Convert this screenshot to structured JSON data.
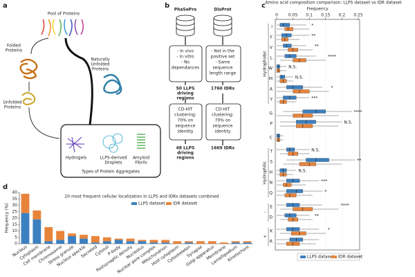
{
  "panel_labels": [
    "a",
    "b",
    "c",
    "d"
  ],
  "diagram_a": {
    "pool": "Pool of Proteins",
    "folded": [
      "Folded",
      "Proteins"
    ],
    "naturally_unfolded": [
      "Naturally",
      "Unfolded",
      "Proteins"
    ],
    "unfolded": [
      "Unfolded",
      "Proteins"
    ],
    "aggregates": [
      [
        "Hydrogels"
      ],
      [
        "LLPS-derived",
        "Droplets"
      ],
      [
        "Amyloid",
        "Fibrils"
      ]
    ],
    "aggregates_title": "Types of Protein Aggregates"
  },
  "flow_b": {
    "columns": [
      {
        "source": "PhaSePro",
        "criteria": [
          "- In vivo",
          "- In vitro",
          "- No",
          "dependances"
        ],
        "count": [
          "50 LLPS",
          "driving",
          "regions"
        ],
        "clustering": [
          "CD-HIT",
          "clustering:",
          "70% on",
          "sequence",
          "identity"
        ],
        "result": [
          "48 LLPS",
          "driving",
          "regions"
        ]
      },
      {
        "source": "DisProt",
        "criteria": [
          "- Not in the",
          "positive set",
          "- Same",
          "sequence",
          "length range"
        ],
        "count": [
          "1760 IDRs"
        ],
        "clustering": [
          "CD-HIT",
          "clustering:",
          "70% on",
          "sequence",
          "identity"
        ],
        "result": [
          "1669 IDRs"
        ]
      }
    ]
  },
  "chart_data": [
    {
      "type": "box",
      "title": "Amino acid composition comparison: LLPS dataset vs IDR dataset",
      "xlabel": "Frequency",
      "xlim": [
        0,
        0.25
      ],
      "xticks": [
        0,
        0.05,
        0.1,
        0.15,
        0.2,
        0.25
      ],
      "series": [
        {
          "name": "LLPS dataset",
          "color": "#3b80c0"
        },
        {
          "name": "IDR dataset",
          "color": "#e8843a"
        }
      ],
      "groups": [
        {
          "name": "Hydrophobic",
          "members": [
            {
              "label": "I",
              "values": [
                [
                  0,
                  0.01,
                  0.02,
                  0.04,
                  0.09
                ],
                [
                  0,
                  0.025,
                  0.035,
                  0.05,
                  0.1
                ]
              ],
              "significance": "*"
            },
            {
              "label": "F",
              "values": [
                [
                  0,
                  0.015,
                  0.03,
                  0.045,
                  0.1
                ],
                [
                  0,
                  0.015,
                  0.025,
                  0.035,
                  0.07
                ]
              ],
              "significance": "**"
            },
            {
              "label": "V",
              "values": [
                [
                  0,
                  0.02,
                  0.03,
                  0.045,
                  0.09
                ],
                [
                  0,
                  0.035,
                  0.05,
                  0.065,
                  0.11
                ]
              ],
              "significance": "**"
            },
            {
              "label": "L",
              "values": [
                [
                  0,
                  0.025,
                  0.04,
                  0.06,
                  0.12
                ],
                [
                  0.01,
                  0.05,
                  0.07,
                  0.09,
                  0.15
                ]
              ],
              "significance": "****"
            },
            {
              "label": "W",
              "values": [
                [
                  0,
                  0,
                  0.005,
                  0.01,
                  0.03
                ],
                [
                  0,
                  0,
                  0.005,
                  0.01,
                  0.03
                ]
              ],
              "significance": "N.S."
            },
            {
              "label": "M",
              "values": [
                [
                  0,
                  0.01,
                  0.015,
                  0.025,
                  0.05
                ],
                [
                  0,
                  0.01,
                  0.02,
                  0.03,
                  0.05
                ]
              ],
              "significance": "N.S."
            },
            {
              "label": "A",
              "values": [
                [
                  0,
                  0.03,
                  0.05,
                  0.08,
                  0.14
                ],
                [
                  0,
                  0.05,
                  0.07,
                  0.1,
                  0.16
                ]
              ],
              "significance": "*"
            },
            {
              "label": "Y",
              "values": [
                [
                  0,
                  0.02,
                  0.04,
                  0.06,
                  0.1
                ],
                [
                  0,
                  0.01,
                  0.02,
                  0.03,
                  0.06
                ]
              ],
              "significance": "***"
            }
          ]
        },
        {
          "members": [
            {
              "label": "G",
              "values": [
                [
                  0.02,
                  0.08,
                  0.12,
                  0.15,
                  0.23
                ],
                [
                  0,
                  0.05,
                  0.08,
                  0.11,
                  0.19
                ]
              ],
              "significance": "****"
            },
            {
              "label": "P",
              "values": [
                [
                  0.01,
                  0.06,
                  0.09,
                  0.12,
                  0.2
                ],
                [
                  0.01,
                  0.06,
                  0.08,
                  0.11,
                  0.19
                ]
              ],
              "significance": "N.S."
            }
          ]
        },
        {
          "members": [
            {
              "label": "C",
              "values": [
                [
                  0,
                  0,
                  0.005,
                  0.01,
                  0.02
                ],
                [
                  0,
                  0,
                  0.005,
                  0.01,
                  0.02
                ]
              ]
            }
          ]
        },
        {
          "name": "Hydrophilic",
          "members": [
            {
              "label": "T",
              "values": [
                [
                  0,
                  0.03,
                  0.04,
                  0.055,
                  0.1
                ],
                [
                  0.01,
                  0.035,
                  0.05,
                  0.065,
                  0.1
                ]
              ],
              "significance": "N.S."
            },
            {
              "label": "S",
              "values": [
                [
                  0.03,
                  0.09,
                  0.12,
                  0.16,
                  0.24
                ],
                [
                  0.02,
                  0.07,
                  0.1,
                  0.12,
                  0.2
                ]
              ],
              "significance": "**"
            },
            {
              "label": "H",
              "values": [
                [
                  0,
                  0.01,
                  0.02,
                  0.03,
                  0.06
                ],
                [
                  0,
                  0.01,
                  0.02,
                  0.03,
                  0.05
                ]
              ],
              "significance": "N.S."
            },
            {
              "label": "N",
              "values": [
                [
                  0,
                  0.03,
                  0.05,
                  0.07,
                  0.13
                ],
                [
                  0,
                  0.02,
                  0.03,
                  0.045,
                  0.09
                ]
              ],
              "significance": "***"
            },
            {
              "label": "Q",
              "values": [
                [
                  0,
                  0.03,
                  0.06,
                  0.08,
                  0.14
                ],
                [
                  0,
                  0.025,
                  0.04,
                  0.06,
                  0.11
                ]
              ],
              "significance": "*"
            }
          ]
        },
        {
          "name": "-",
          "members": [
            {
              "label": "E",
              "values": [
                [
                  0,
                  0.03,
                  0.05,
                  0.07,
                  0.14
                ],
                [
                  0.01,
                  0.05,
                  0.08,
                  0.11,
                  0.19
                ]
              ],
              "significance": "****"
            },
            {
              "label": "D",
              "values": [
                [
                  0,
                  0.025,
                  0.04,
                  0.06,
                  0.1
                ],
                [
                  0.01,
                  0.035,
                  0.05,
                  0.065,
                  0.11
                ]
              ],
              "significance": "**"
            }
          ]
        },
        {
          "name": "+",
          "members": [
            {
              "label": "K",
              "values": [
                [
                  0,
                  0.03,
                  0.05,
                  0.07,
                  0.13
                ],
                [
                  0.01,
                  0.045,
                  0.07,
                  0.09,
                  0.15
                ]
              ],
              "significance": "*"
            },
            {
              "label": "R",
              "values": [
                [
                  0,
                  0.04,
                  0.06,
                  0.08,
                  0.13
                ],
                [
                  0,
                  0.03,
                  0.05,
                  0.07,
                  0.12
                ]
              ]
            }
          ]
        }
      ]
    },
    {
      "type": "bar",
      "stacked": true,
      "title": "20 most frequent cellular localization in LLPS and IDRs datasets combined",
      "ylabel": "Frequency (%)",
      "categories": [
        "Nucleus",
        "Cytoplasm",
        "Cell membrane",
        "Chromosome",
        "Stress granule",
        "Nucleus speckle",
        "Secreted",
        "Cytosol",
        "P-body",
        "Postsynaptic density",
        "Nucleolus",
        "Nuclear pore complex",
        "Mitochondrion",
        "Host cytoplasm",
        "Cytoskeleton",
        "Synapse",
        "Golgi apparatus",
        "Membrane",
        "Lamellipodium",
        "Kinetochore"
      ],
      "series": [
        {
          "name": "LLPS dataset",
          "color": "#3b80c0",
          "values": [
            24,
            19,
            2,
            3,
            6,
            4,
            1,
            2,
            3,
            2,
            2,
            1,
            1,
            0,
            1,
            0,
            0,
            0,
            1,
            1
          ]
        },
        {
          "name": "IDR dataset",
          "color": "#e8843a",
          "values": [
            15,
            7,
            11,
            7,
            2,
            3,
            5,
            3,
            1,
            2,
            1,
            2,
            2,
            2,
            1,
            2,
            2,
            1,
            1,
            1
          ]
        }
      ],
      "ylim": [
        0,
        40
      ],
      "yticks": [
        0,
        5,
        10,
        15,
        20,
        25,
        30,
        35,
        40
      ]
    }
  ]
}
